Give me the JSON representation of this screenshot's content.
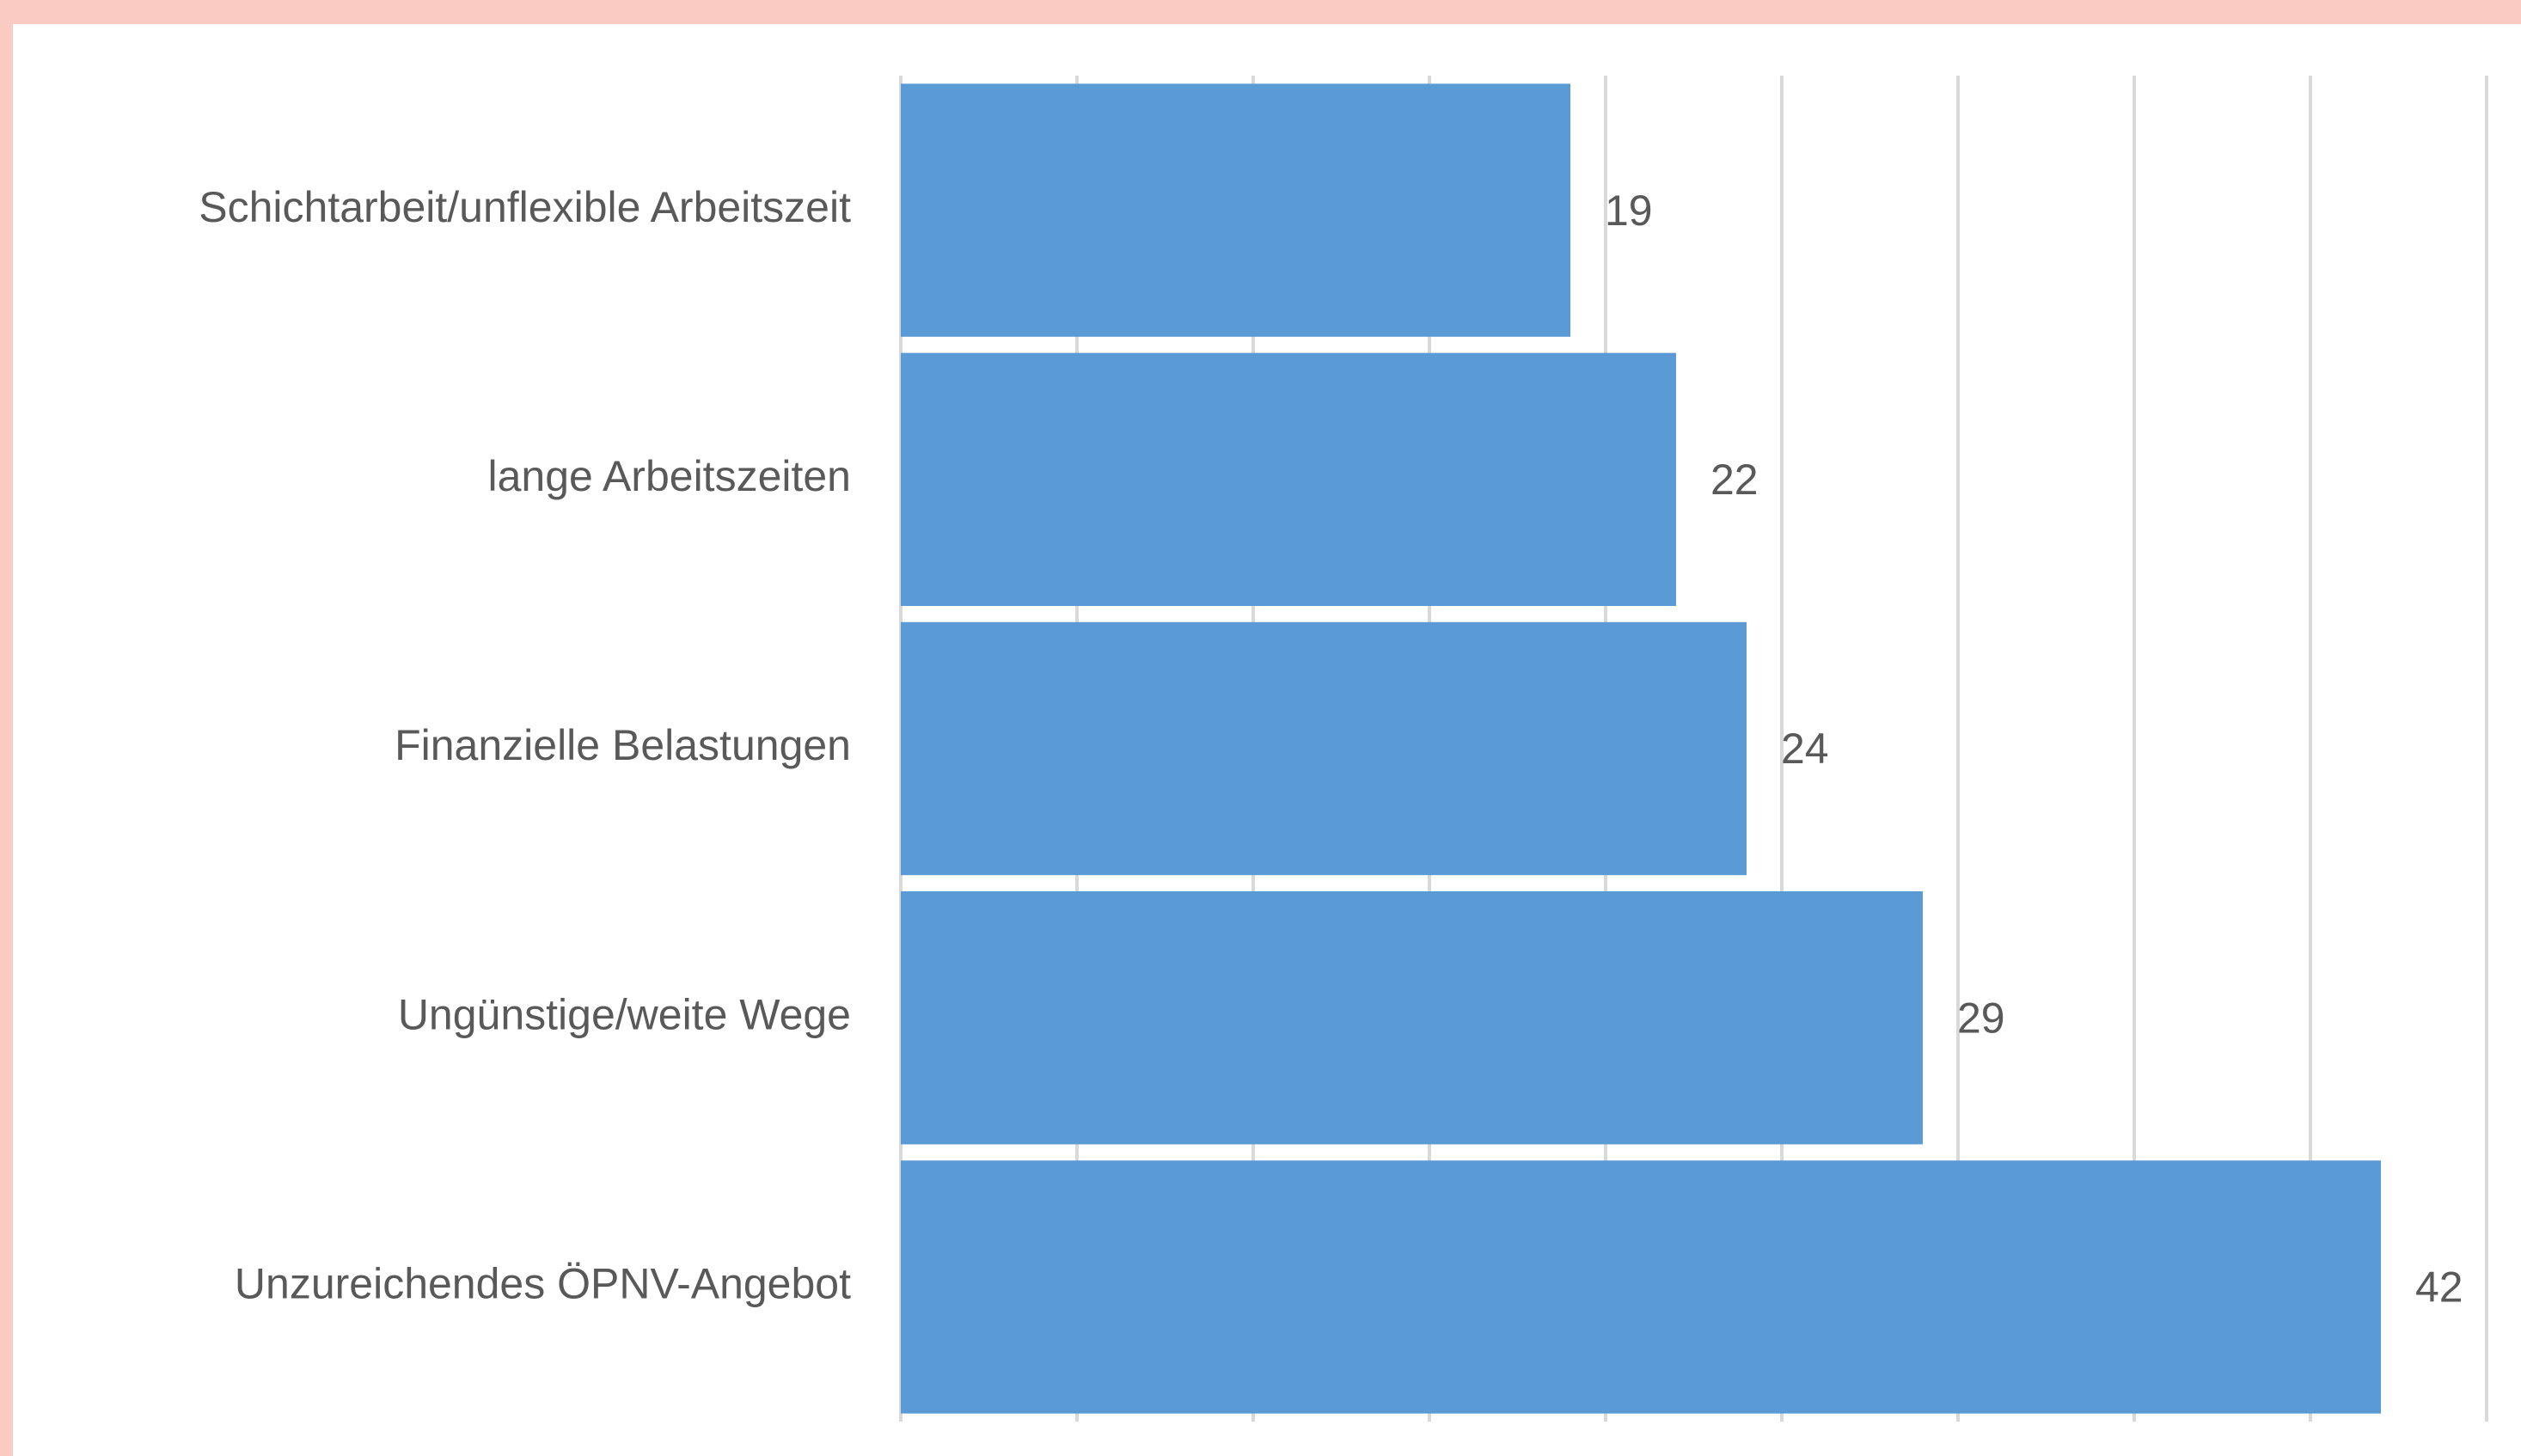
{
  "chart_data": {
    "type": "bar",
    "orientation": "horizontal",
    "categories": [
      "Schichtarbeit/unflexible Arbeitszeit",
      "lange Arbeitszeiten",
      "Finanzielle Belastungen",
      "Ungünstige/weite Wege",
      "Unzureichendes ÖPNV-Angebot"
    ],
    "values": [
      19,
      22,
      24,
      29,
      42
    ],
    "color": "#5b9bd5",
    "xlim": [
      0,
      45
    ],
    "xticks": [
      0,
      5,
      10,
      15,
      20,
      25,
      30,
      35,
      40,
      45
    ],
    "grid": true
  }
}
